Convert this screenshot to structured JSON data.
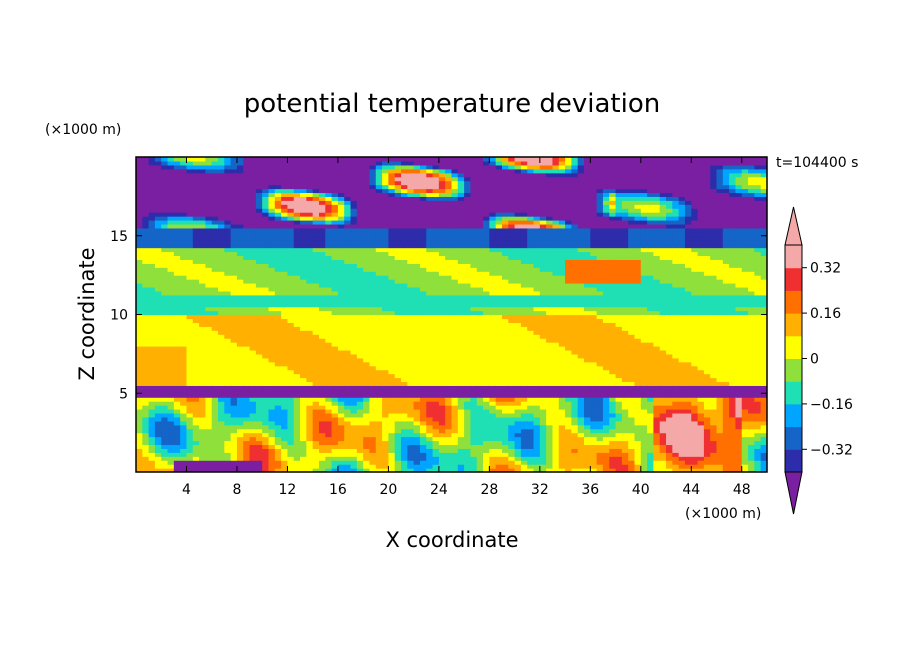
{
  "chart_data": {
    "type": "heatmap",
    "title": "potential temperature deviation",
    "xlabel": "X coordinate",
    "ylabel": "Z coordinate",
    "x_unit": "(×1000 m)",
    "y_unit": "(×1000 m)",
    "time_label": "t=104400 s",
    "xlim": [
      0,
      50
    ],
    "ylim": [
      0,
      20
    ],
    "x_ticks": [
      4,
      8,
      12,
      16,
      20,
      24,
      28,
      32,
      36,
      40,
      44,
      48
    ],
    "y_ticks": [
      5,
      10,
      15
    ],
    "colorbar": {
      "levels": [
        -0.4,
        -0.32,
        -0.24,
        -0.16,
        -0.08,
        0,
        0.08,
        0.16,
        0.24,
        0.32,
        0.4
      ],
      "tick_labels": [
        "−0.32",
        "−0.16",
        "0",
        "0.16",
        "0.32"
      ],
      "tick_values": [
        -0.32,
        -0.16,
        0,
        0.16,
        0.32
      ],
      "colors": [
        "#7b1fa2",
        "#2d2dab",
        "#1565c8",
        "#00a5ff",
        "#1ee0b4",
        "#8fe03a",
        "#ffff00",
        "#ffb000",
        "#ff7000",
        "#f03030",
        "#f4a8a8"
      ],
      "under_color": "#7b1fa2",
      "over_color": "#f4a8a8",
      "extend": "both"
    },
    "field_bands": [
      {
        "z_range": [
          15.5,
          20
        ],
        "dominant_value": -0.45,
        "note": "upper purple layer with pink patches"
      },
      {
        "z_range": [
          14.2,
          15.4
        ],
        "dominant_value": -0.3
      },
      {
        "z_range": [
          10,
          14
        ],
        "dominant_value": -0.05
      },
      {
        "z_range": [
          5.5,
          10
        ],
        "dominant_value": 0.04
      },
      {
        "z_range": [
          0,
          5.3
        ],
        "dominant_value": 0.1,
        "note": "turbulent boundary layer"
      }
    ]
  }
}
